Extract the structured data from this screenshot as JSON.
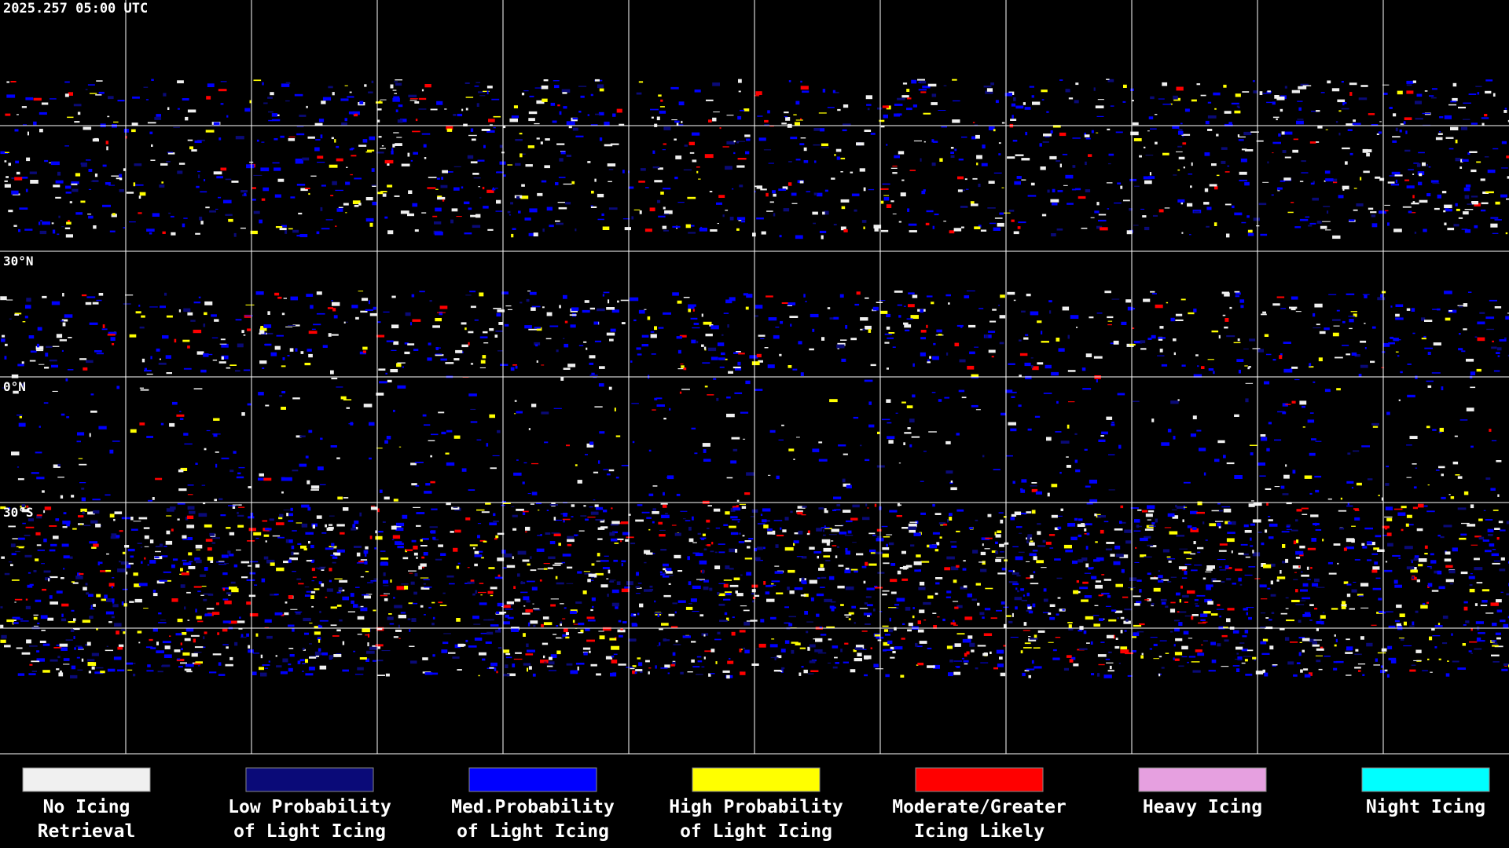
{
  "header": {
    "timestamp": "2025.257 05:00 UTC"
  },
  "map": {
    "latitude_labels": [
      "30°N",
      "0°N",
      "30°S"
    ]
  },
  "legend": {
    "items": [
      {
        "lines": [
          "No Icing",
          "Retrieval"
        ],
        "color": "#f0f0f0"
      },
      {
        "lines": [
          "Low Probability",
          "of Light Icing"
        ],
        "color": "#0a0a78"
      },
      {
        "lines": [
          "Med.Probability",
          "of Light Icing"
        ],
        "color": "#0000ff"
      },
      {
        "lines": [
          "High Probability",
          "of Light Icing"
        ],
        "color": "#ffff00"
      },
      {
        "lines": [
          "Moderate/Greater",
          "Icing Likely"
        ],
        "color": "#ff0000"
      },
      {
        "lines": [
          "Heavy Icing"
        ],
        "color": "#e6a0e0"
      },
      {
        "lines": [
          "Night Icing"
        ],
        "color": "#00ffff"
      }
    ]
  }
}
